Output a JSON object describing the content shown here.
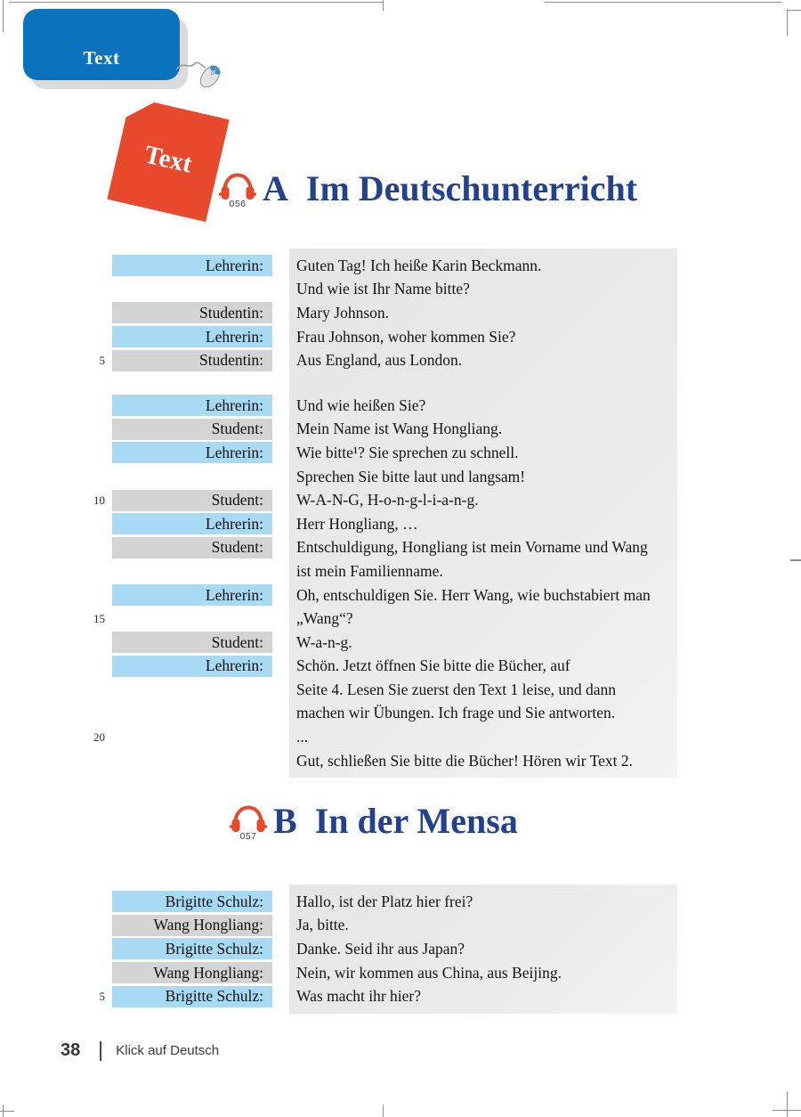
{
  "colors": {
    "tab_blue": "#0b72bd",
    "badge_red": "#e8492c",
    "heading_blue": "#24418e",
    "teacher_label_bg": "#a9daf4",
    "student_label_bg": "#d4d4d4",
    "dialogue_bg_start": "#e5e5e5",
    "dialogue_bg_end": "#f3f3f3",
    "footer_text": "#383838",
    "crop_mark": "#8f8f8f"
  },
  "icons": {
    "mouse": "mouse-icon",
    "headphones": "headphones-icon"
  },
  "tab": {
    "label": "Text"
  },
  "badge": {
    "label": "Text"
  },
  "sections": [
    {
      "audio": "056",
      "letter": "A",
      "title": "Im Deutschunterricht",
      "rows": [
        {
          "num": "",
          "who": "t",
          "speaker": "Lehrerin:",
          "text": "Guten Tag! Ich heiße Karin Beckmann."
        },
        {
          "num": "",
          "who": "",
          "speaker": "",
          "text": "Und wie ist Ihr Name bitte?"
        },
        {
          "num": "",
          "who": "s",
          "speaker": "Studentin:",
          "text": "Mary Johnson."
        },
        {
          "num": "",
          "who": "t",
          "speaker": "Lehrerin:",
          "text": "Frau Johnson, woher kommen Sie?"
        },
        {
          "num": "5",
          "who": "s",
          "speaker": "Studentin:",
          "text": "Aus England, aus London."
        },
        {
          "gap": true
        },
        {
          "num": "",
          "who": "t",
          "speaker": "Lehrerin:",
          "text": "Und wie heißen Sie?"
        },
        {
          "num": "",
          "who": "s",
          "speaker": "Student:",
          "text": "Mein Name ist Wang Hongliang."
        },
        {
          "num": "",
          "who": "t",
          "speaker": "Lehrerin:",
          "text": "Wie bitte¹? Sie sprechen zu schnell."
        },
        {
          "num": "",
          "who": "",
          "speaker": "",
          "text": "Sprechen Sie bitte laut und langsam!"
        },
        {
          "num": "10",
          "who": "s",
          "speaker": "Student:",
          "text": "W-A-N-G, H-o-n-g-l-i-a-n-g."
        },
        {
          "num": "",
          "who": "t",
          "speaker": "Lehrerin:",
          "text": "Herr Hongliang, …"
        },
        {
          "num": "",
          "who": "s",
          "speaker": "Student:",
          "text": "Entschuldigung, Hongliang ist mein Vorname und Wang"
        },
        {
          "num": "",
          "who": "",
          "speaker": "",
          "text": "ist mein Familienname."
        },
        {
          "num": "",
          "who": "t",
          "speaker": "Lehrerin:",
          "text": "Oh, entschuldigen Sie. Herr Wang, wie buchstabiert man"
        },
        {
          "num": "15",
          "who": "",
          "speaker": "",
          "text": "„Wang“?"
        },
        {
          "num": "",
          "who": "s",
          "speaker": "Student:",
          "text": "W-a-n-g."
        },
        {
          "num": "",
          "who": "t",
          "speaker": "Lehrerin:",
          "text": "Schön. Jetzt öffnen Sie bitte die Bücher, auf"
        },
        {
          "num": "",
          "who": "",
          "speaker": "",
          "text": "Seite 4. Lesen Sie zuerst den Text 1 leise, und dann"
        },
        {
          "num": "",
          "who": "",
          "speaker": "",
          "text": "machen wir Übungen. Ich frage und Sie antworten."
        },
        {
          "num": "20",
          "who": "",
          "speaker": "",
          "text": "..."
        },
        {
          "num": "",
          "who": "",
          "speaker": "",
          "text": "Gut, schließen Sie bitte die Bücher! Hören wir Text 2."
        }
      ]
    },
    {
      "audio": "057",
      "letter": "B",
      "title": "In der Mensa",
      "rows": [
        {
          "num": "",
          "who": "t",
          "speaker": "Brigitte Schulz:",
          "text": "Hallo, ist der Platz hier frei?"
        },
        {
          "num": "",
          "who": "s",
          "speaker": "Wang Hongliang:",
          "text": "Ja, bitte."
        },
        {
          "num": "",
          "who": "t",
          "speaker": "Brigitte Schulz:",
          "text": "Danke. Seid ihr aus Japan?"
        },
        {
          "num": "",
          "who": "s",
          "speaker": "Wang Hongliang:",
          "text": "Nein, wir kommen aus China, aus Beijing."
        },
        {
          "num": "5",
          "who": "t",
          "speaker": "Brigitte Schulz:",
          "text": "Was macht ihr hier?"
        }
      ]
    }
  ],
  "footer": {
    "page_number": "38",
    "book_title": "Klick auf Deutsch"
  }
}
